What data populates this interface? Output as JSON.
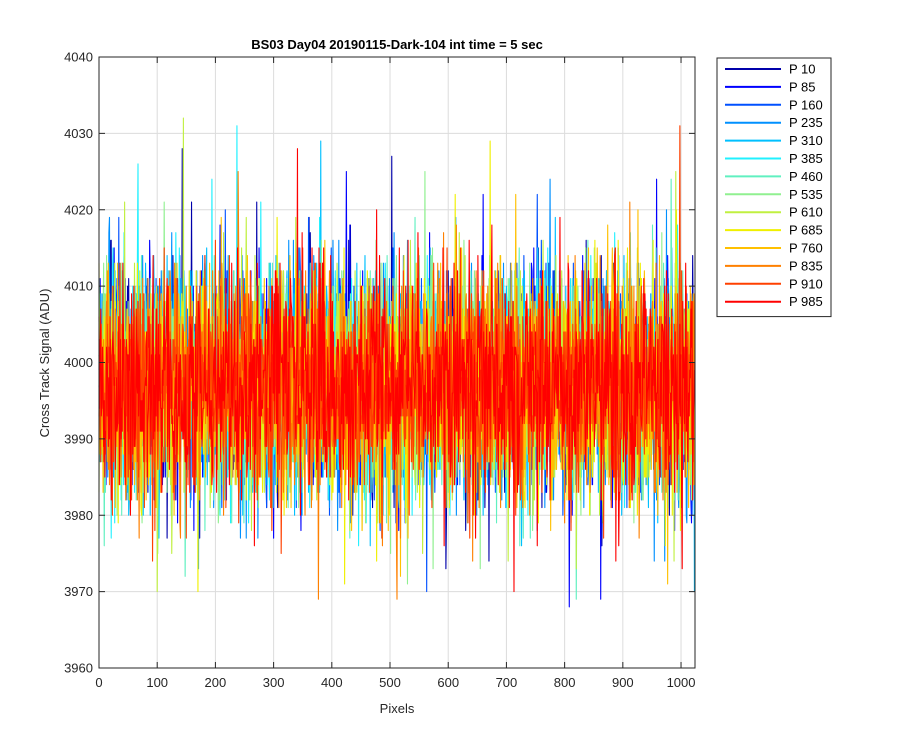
{
  "chart_data": {
    "type": "line",
    "title": "BS03 Day04 20190115-Dark-104 int time = 5 sec",
    "xlabel": "Pixels",
    "ylabel": "Cross Track Signal (ADU)",
    "xlim": [
      0,
      1024
    ],
    "ylim": [
      3960,
      4040
    ],
    "xticks": [
      0,
      100,
      200,
      300,
      400,
      500,
      600,
      700,
      800,
      900,
      1000
    ],
    "yticks": [
      3960,
      3970,
      3980,
      3990,
      4000,
      4010,
      4020,
      4030,
      4040
    ],
    "grid": true,
    "legend_position": "outside-top-right",
    "noise_summary": {
      "points_per_series": 1024,
      "mean": 3997,
      "typical_range": [
        3978,
        4016
      ],
      "min_observed": 3968,
      "max_observed": 4032
    },
    "series": [
      {
        "name": "P 10",
        "color": "#0000aa",
        "peaks": [
          {
            "x": 143,
            "y": 4028
          },
          {
            "x": 503,
            "y": 4027
          }
        ]
      },
      {
        "name": "P 85",
        "color": "#0000ff",
        "peaks": [
          {
            "x": 425,
            "y": 4025
          },
          {
            "x": 808,
            "y": 3968
          },
          {
            "x": 862,
            "y": 3969
          },
          {
            "x": 958,
            "y": 4024
          }
        ]
      },
      {
        "name": "P 160",
        "color": "#0050ff",
        "peaks": [
          {
            "x": 563,
            "y": 3970
          }
        ]
      },
      {
        "name": "P 235",
        "color": "#0090ff",
        "peaks": [
          {
            "x": 775,
            "y": 4024
          }
        ]
      },
      {
        "name": "P 310",
        "color": "#00c0ff",
        "peaks": [
          {
            "x": 381,
            "y": 4029
          },
          {
            "x": 1025,
            "y": 3970
          }
        ]
      },
      {
        "name": "P 385",
        "color": "#20f0ff",
        "peaks": [
          {
            "x": 237,
            "y": 4031
          },
          {
            "x": 67,
            "y": 4026
          }
        ]
      },
      {
        "name": "P 460",
        "color": "#60f0c0",
        "peaks": [
          {
            "x": 820,
            "y": 3969
          }
        ]
      },
      {
        "name": "P 535",
        "color": "#90f090",
        "peaks": [
          {
            "x": 560,
            "y": 4025
          }
        ]
      },
      {
        "name": "P 610",
        "color": "#c0f040",
        "peaks": [
          {
            "x": 145,
            "y": 4032
          },
          {
            "x": 100,
            "y": 3970
          }
        ]
      },
      {
        "name": "P 685",
        "color": "#f0f000",
        "peaks": [
          {
            "x": 672,
            "y": 4029
          },
          {
            "x": 170,
            "y": 3970
          }
        ]
      },
      {
        "name": "P 760",
        "color": "#ffc000",
        "peaks": [
          {
            "x": 977,
            "y": 3971
          }
        ]
      },
      {
        "name": "P 835",
        "color": "#ff8000",
        "peaks": [
          {
            "x": 377,
            "y": 3969
          },
          {
            "x": 512,
            "y": 3969
          }
        ]
      },
      {
        "name": "P 910",
        "color": "#ff4000",
        "peaks": [
          {
            "x": 998,
            "y": 4031
          }
        ]
      },
      {
        "name": "P 985",
        "color": "#ff0000",
        "peaks": [
          {
            "x": 341,
            "y": 4028
          },
          {
            "x": 713,
            "y": 3970
          }
        ]
      }
    ]
  }
}
